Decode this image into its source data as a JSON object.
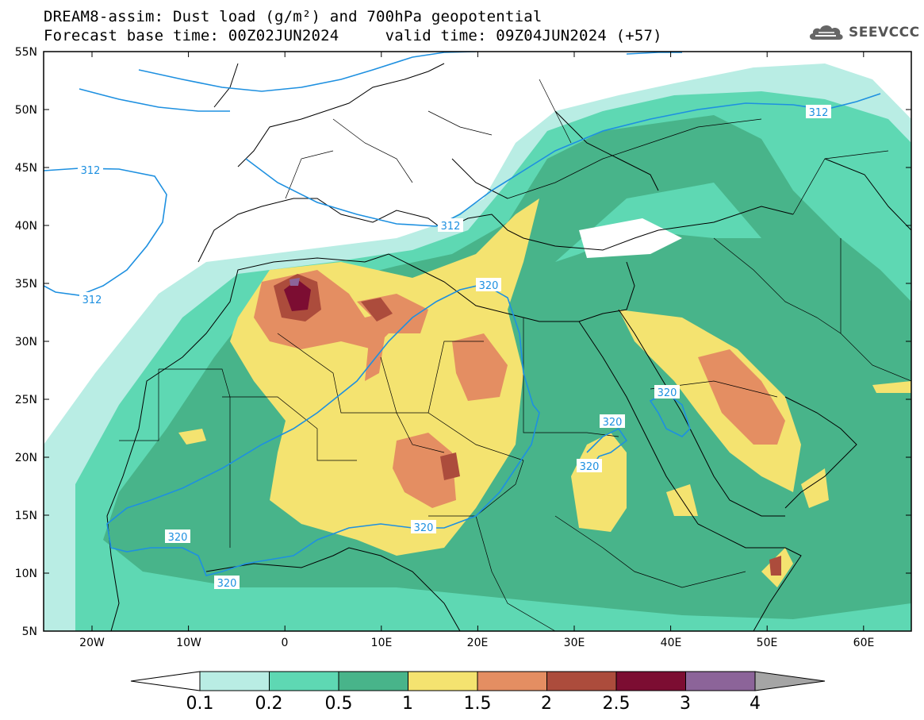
{
  "header": {
    "title_line1": "DREAM8-assim: Dust load (g/m²) and 700hPa geopotential",
    "title_line2": "Forecast base time: 00Z02JUN2024     valid time: 09Z04JUN2024 (+57)",
    "logo_text": "SEEVCCC",
    "logo_icon": "cloud-icon"
  },
  "map": {
    "lat_labels": [
      "55N",
      "50N",
      "45N",
      "40N",
      "35N",
      "30N",
      "25N",
      "20N",
      "15N",
      "10N",
      "5N"
    ],
    "lon_labels": [
      "20W",
      "10W",
      "0",
      "10E",
      "20E",
      "30E",
      "40E",
      "50E",
      "60E"
    ],
    "contour_labels": [
      "312",
      "312",
      "312",
      "312",
      "320",
      "320",
      "320",
      "320",
      "320",
      "320",
      "320"
    ]
  },
  "colorbar": {
    "tick_labels": [
      "0.1",
      "0.2",
      "0.5",
      "1",
      "1.5",
      "2",
      "2.5",
      "3",
      "4"
    ],
    "colors": [
      "#b9ede4",
      "#5ed8b3",
      "#48b48a",
      "#f4e370",
      "#e48e62",
      "#ac4c3c",
      "#7c0d32",
      "#8c6499",
      "#a5a5a5"
    ]
  }
}
